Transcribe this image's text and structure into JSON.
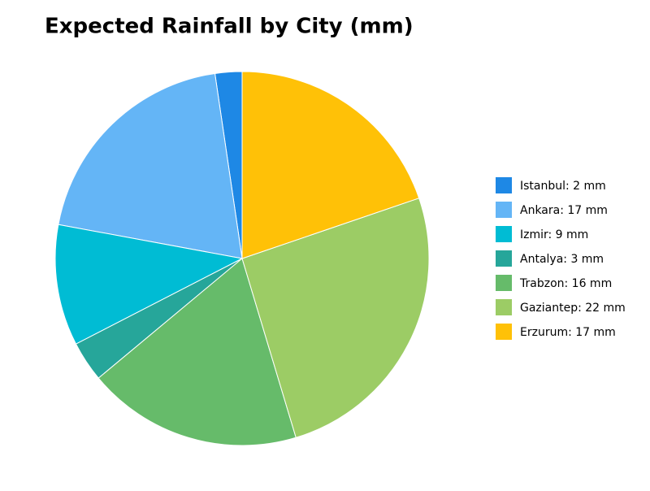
{
  "chart_data": {
    "type": "pie",
    "title": "Expected Rainfall by City (mm)",
    "categories": [
      "Istanbul: 2 mm",
      "Ankara: 17 mm",
      "Izmir: 9 mm",
      "Antalya: 3 mm",
      "Trabzon: 16 mm",
      "Gaziantep: 22 mm",
      "Erzurum: 17 mm"
    ],
    "values": [
      2,
      17,
      9,
      3,
      16,
      22,
      17
    ],
    "colors": [
      "#1e88e5",
      "#64b5f6",
      "#00bcd4",
      "#26a69a",
      "#66bb6a",
      "#9ccc65",
      "#ffc107"
    ],
    "legend": "right"
  }
}
